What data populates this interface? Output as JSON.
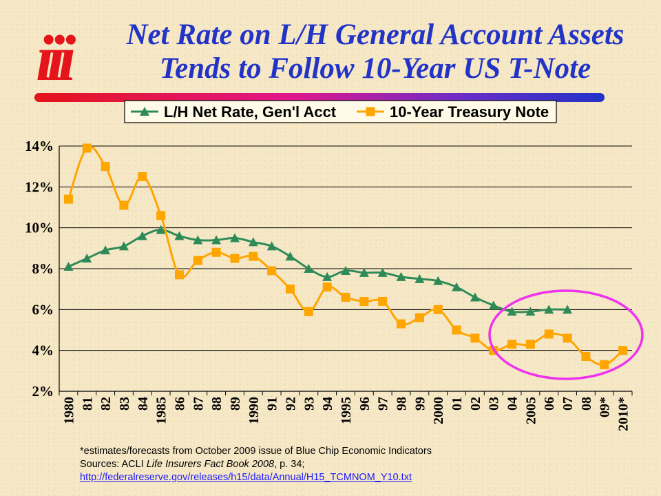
{
  "logo": "iii",
  "title": {
    "line1": "Net Rate on L/H General Account Assets",
    "line2": "Tends to Follow 10-Year US T-Note"
  },
  "footnote": {
    "estimates_note": "*estimates/forecasts from October 2009 issue of Blue Chip Economic Indicators",
    "sources_prefix": "Sources: ACLI ",
    "sources_title": "Life Insurers Fact Book 2008",
    "sources_suffix": ", p. 34;",
    "link": "http://federalreserve.gov/releases/h15/data/Annual/H15_TCMNOM_Y10.txt"
  },
  "colors": {
    "lh_series": "#2e8b57",
    "treasury_series": "#ffa500",
    "highlight_ellipse": "#ee33ee",
    "title": "#2233c8",
    "logo": "#e4141a"
  },
  "chart_data": {
    "type": "line",
    "title": "",
    "xlabel": "",
    "ylabel": "",
    "ylim": [
      2,
      14
    ],
    "yticks": [
      "2%",
      "4%",
      "6%",
      "8%",
      "10%",
      "12%",
      "14%"
    ],
    "grid": "horizontal",
    "legend_position": "top",
    "categories": [
      "1980",
      "81",
      "82",
      "83",
      "84",
      "1985",
      "86",
      "87",
      "88",
      "89",
      "1990",
      "91",
      "92",
      "93",
      "94",
      "1995",
      "96",
      "97",
      "98",
      "99",
      "2000",
      "01",
      "02",
      "03",
      "04",
      "2005",
      "06",
      "07",
      "08",
      "09*",
      "2010*"
    ],
    "series": [
      {
        "name": "L/H Net Rate, Gen'l Acct",
        "marker": "triangle",
        "values": [
          8.1,
          8.5,
          8.9,
          9.1,
          9.6,
          9.9,
          9.6,
          9.4,
          9.4,
          9.5,
          9.3,
          9.1,
          8.6,
          8.0,
          7.6,
          7.9,
          7.8,
          7.8,
          7.6,
          7.5,
          7.4,
          7.1,
          6.6,
          6.2,
          5.9,
          5.9,
          6.0,
          6.0,
          null,
          null,
          null
        ]
      },
      {
        "name": "10-Year Treasury Note",
        "marker": "square",
        "values": [
          11.4,
          13.9,
          13.0,
          11.1,
          12.5,
          10.6,
          7.7,
          8.4,
          8.8,
          8.5,
          8.6,
          7.9,
          7.0,
          5.9,
          7.1,
          6.6,
          6.4,
          6.4,
          5.3,
          5.6,
          6.0,
          5.0,
          4.6,
          4.0,
          4.3,
          4.3,
          4.8,
          4.6,
          3.7,
          3.3,
          4.0
        ]
      }
    ]
  }
}
